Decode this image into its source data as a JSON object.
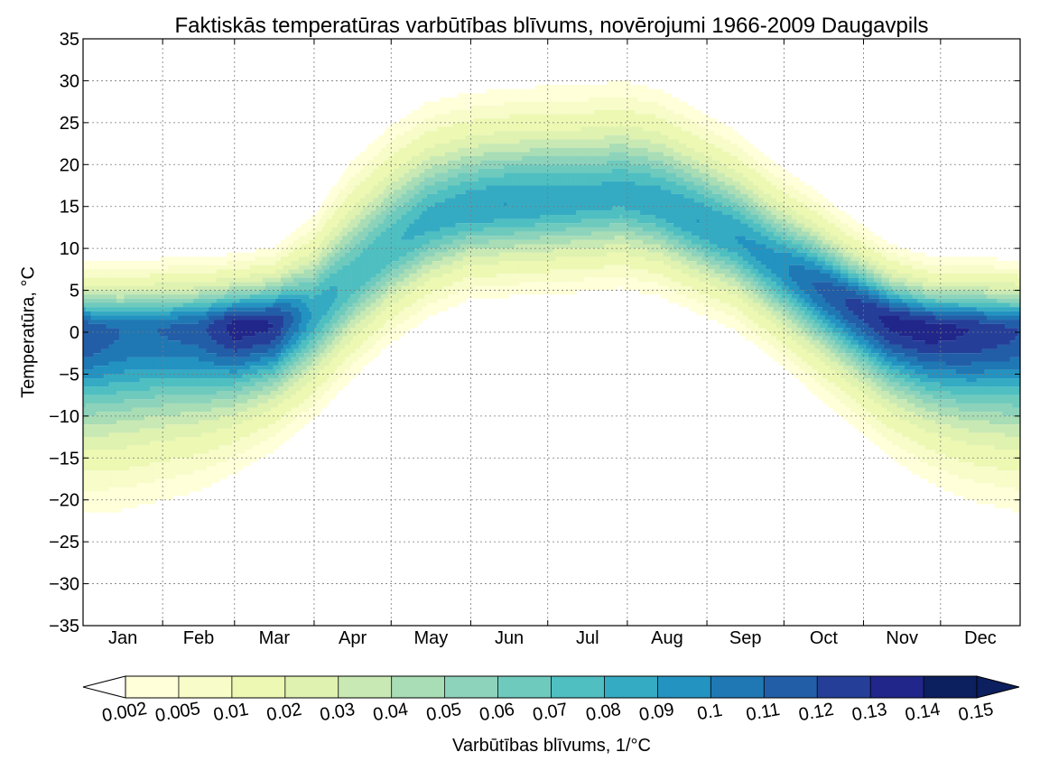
{
  "chart_data": {
    "type": "contour",
    "title": "Faktiskās temperatūras varbūtības blīvums, novērojumi 1966-2009 Daugavpils",
    "xlabel": "",
    "ylabel": "Temperatūra, °C",
    "colorbar_label": "Varbūtības blīvums, 1/°C",
    "x_categories": [
      "Jan",
      "Feb",
      "Mar",
      "Apr",
      "May",
      "Jun",
      "Jul",
      "Aug",
      "Sep",
      "Oct",
      "Nov",
      "Dec"
    ],
    "ylim": [
      -35,
      35
    ],
    "yticks": [
      35,
      30,
      25,
      20,
      15,
      10,
      5,
      0,
      -5,
      -10,
      -15,
      -20,
      -25,
      -30,
      -35
    ],
    "grid": true,
    "levels": [
      "0.002",
      "0.005",
      "0.01",
      "0.02",
      "0.03",
      "0.04",
      "0.05",
      "0.06",
      "0.07",
      "0.08",
      "0.09",
      "0.1",
      "0.11",
      "0.12",
      "0.13",
      "0.14",
      "0.15"
    ],
    "level_colors": [
      "#ffffd9",
      "#f7fcc9",
      "#edf8b3",
      "#dff2b0",
      "#c9e9b4",
      "#a8ddb5",
      "#8dd3bb",
      "#6ecabd",
      "#4fbfc1",
      "#35abc3",
      "#2393c1",
      "#1f78b4",
      "#225ea8",
      "#253f99",
      "#21268a",
      "#0c1f5e"
    ],
    "day_of_month_ticks": [
      1,
      32,
      60,
      91,
      121,
      152,
      182,
      213,
      244,
      274,
      305,
      335
    ],
    "density_model": {
      "days": [
        1,
        15,
        30,
        45,
        60,
        75,
        90,
        105,
        120,
        135,
        150,
        165,
        180,
        195,
        210,
        225,
        240,
        255,
        270,
        285,
        300,
        315,
        330,
        345,
        365
      ],
      "mode_temperature": [
        0.3,
        0.2,
        0.5,
        0.6,
        0.9,
        1.2,
        2.5,
        6.5,
        10.5,
        13.5,
        15.0,
        15.5,
        15.8,
        16.0,
        16.5,
        15.5,
        13.5,
        11.5,
        8.5,
        6.0,
        3.5,
        1.5,
        0.6,
        0.5,
        0.3
      ],
      "sigma_above": [
        3.0,
        3.0,
        3.0,
        3.0,
        3.0,
        3.2,
        4.2,
        5.2,
        5.3,
        5.2,
        5.0,
        5.0,
        5.0,
        5.0,
        5.0,
        5.0,
        4.8,
        4.6,
        4.3,
        4.0,
        3.6,
        3.2,
        3.0,
        3.0,
        3.0
      ],
      "sigma_below": [
        7.5,
        7.5,
        7.2,
        6.8,
        6.0,
        5.2,
        4.6,
        4.4,
        4.3,
        4.2,
        4.0,
        4.0,
        4.0,
        4.0,
        4.0,
        4.0,
        4.0,
        4.0,
        4.2,
        4.6,
        5.0,
        5.6,
        6.3,
        7.0,
        7.5
      ],
      "peak_density": [
        0.12,
        0.11,
        0.11,
        0.115,
        0.135,
        0.13,
        0.088,
        0.076,
        0.078,
        0.084,
        0.087,
        0.09,
        0.088,
        0.085,
        0.085,
        0.087,
        0.09,
        0.09,
        0.095,
        0.11,
        0.122,
        0.133,
        0.135,
        0.13,
        0.12
      ]
    }
  }
}
